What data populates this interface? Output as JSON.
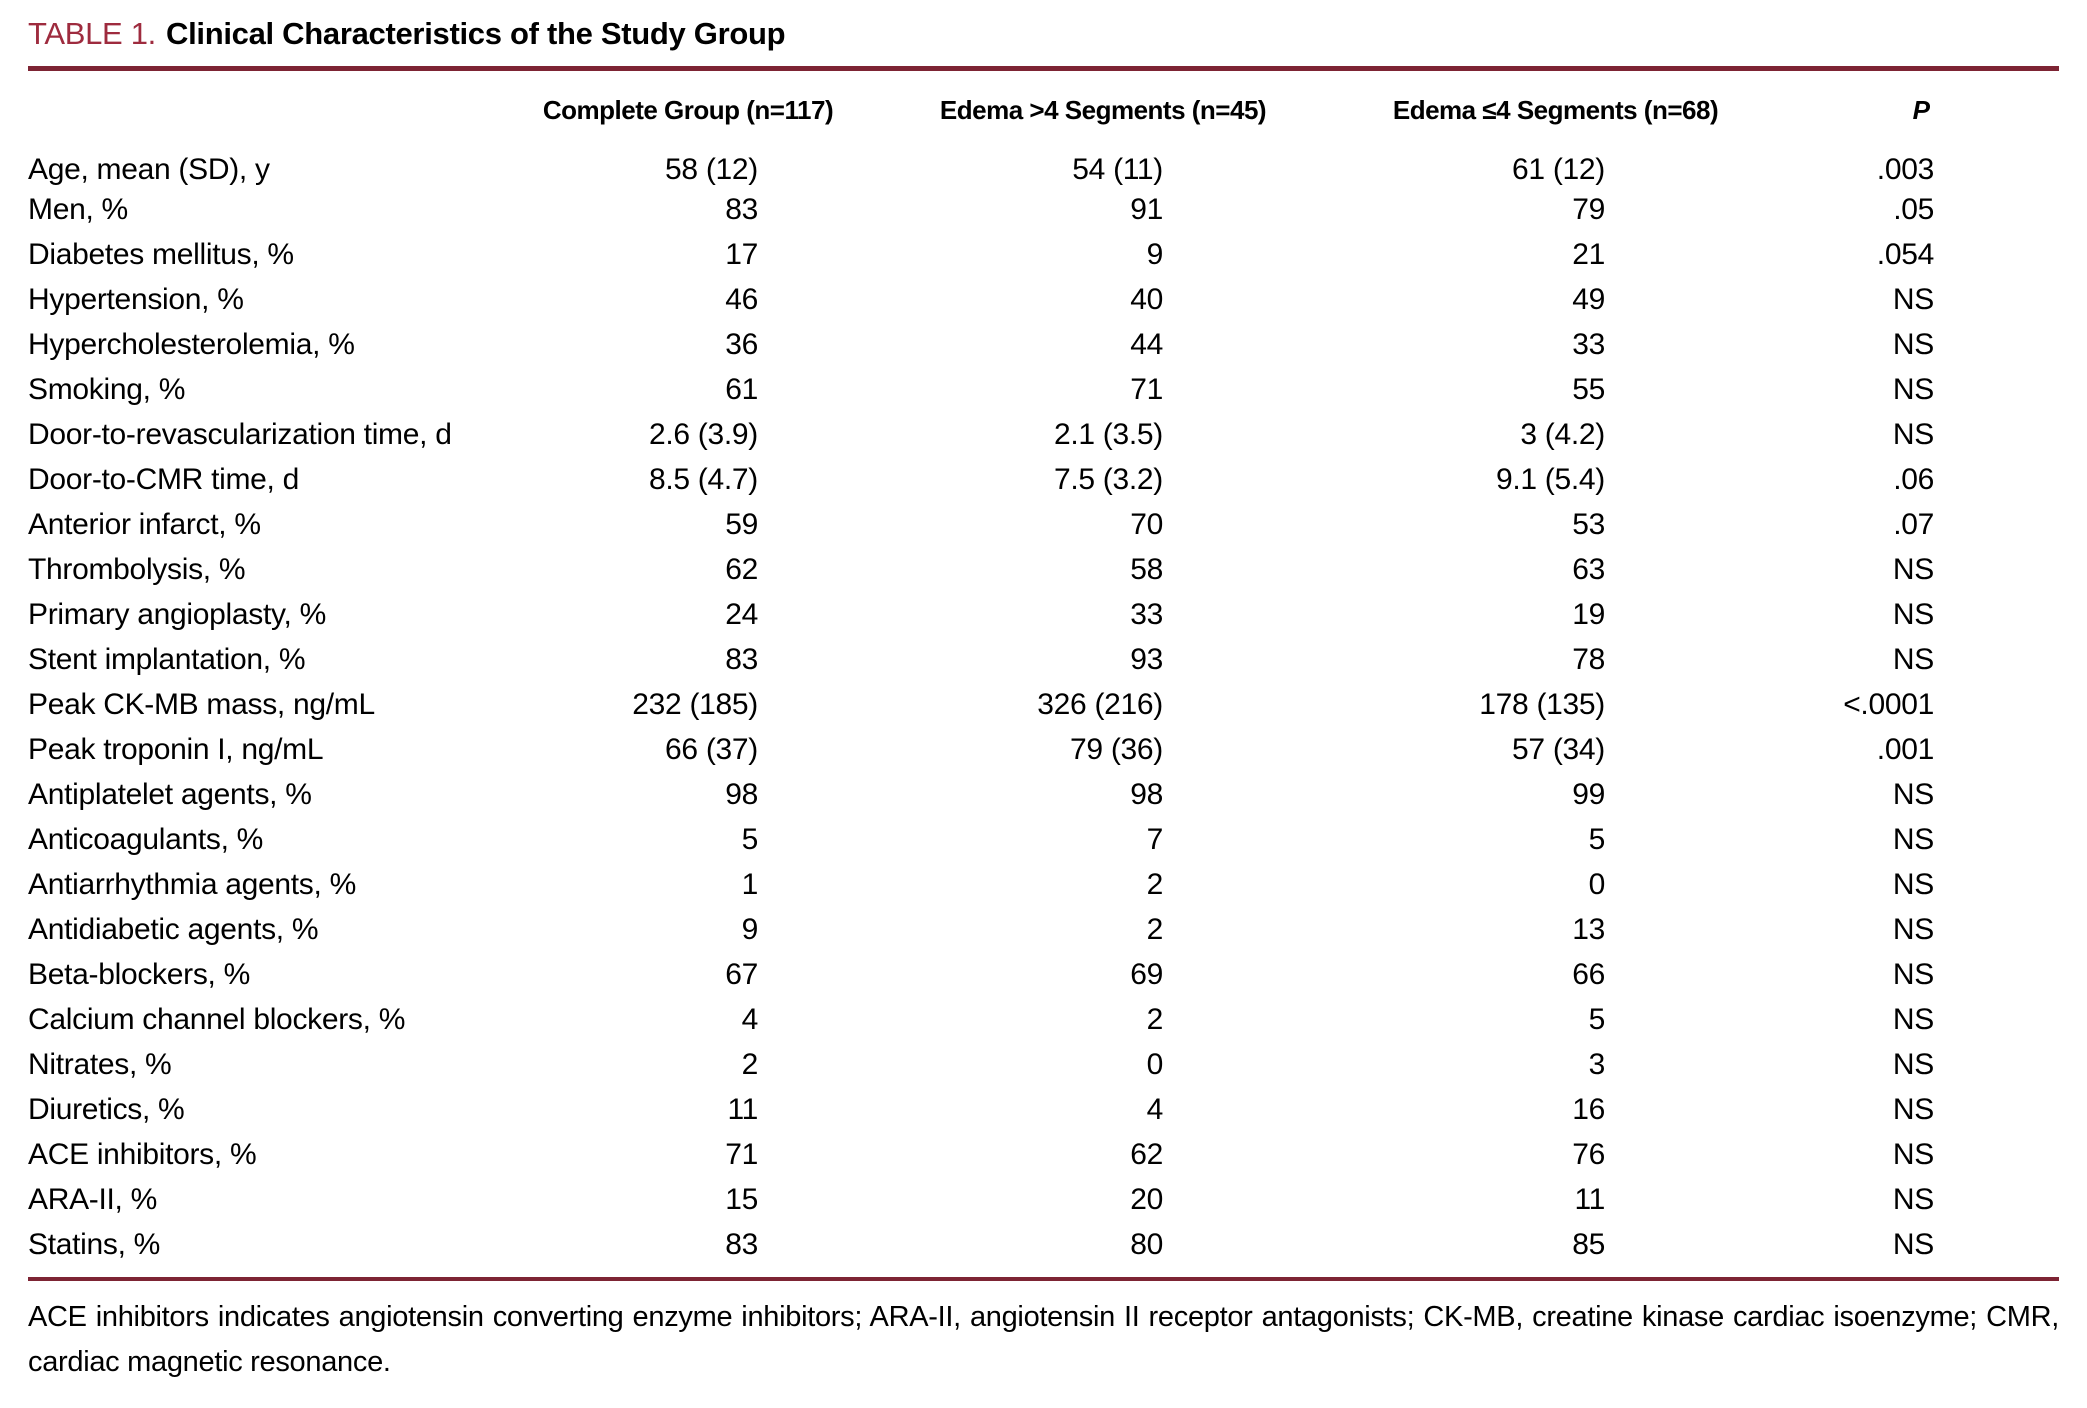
{
  "colors": {
    "accent": "#9e2b3e",
    "rule": "#7d2434"
  },
  "table": {
    "label": "TABLE 1.",
    "title": "Clinical Characteristics of the Study Group",
    "columns": [
      "",
      "Complete Group (n=117)",
      "Edema >4 Segments (n=45)",
      "Edema ≤4 Segments (n=68)",
      "P"
    ],
    "rows": [
      {
        "label": "Age, mean (SD), y",
        "complete": "58 (12)",
        "edema_gt4": "54 (11)",
        "edema_le4": "61 (12)",
        "p": ".003"
      },
      {
        "label": "Men, %",
        "complete": "83",
        "edema_gt4": "91",
        "edema_le4": "79",
        "p": ".05"
      },
      {
        "label": "Diabetes mellitus, %",
        "complete": "17",
        "edema_gt4": "9",
        "edema_le4": "21",
        "p": ".054"
      },
      {
        "label": "Hypertension, %",
        "complete": "46",
        "edema_gt4": "40",
        "edema_le4": "49",
        "p": "NS"
      },
      {
        "label": "Hypercholesterolemia, %",
        "complete": "36",
        "edema_gt4": "44",
        "edema_le4": "33",
        "p": "NS"
      },
      {
        "label": "Smoking, %",
        "complete": "61",
        "edema_gt4": "71",
        "edema_le4": "55",
        "p": "NS"
      },
      {
        "label": "Door-to-revascularization time, d",
        "complete": "2.6 (3.9)",
        "edema_gt4": "2.1 (3.5)",
        "edema_le4": "3 (4.2)",
        "p": "NS"
      },
      {
        "label": "Door-to-CMR time, d",
        "complete": "8.5 (4.7)",
        "edema_gt4": "7.5 (3.2)",
        "edema_le4": "9.1 (5.4)",
        "p": ".06"
      },
      {
        "label": "Anterior infarct, %",
        "complete": "59",
        "edema_gt4": "70",
        "edema_le4": "53",
        "p": ".07"
      },
      {
        "label": "Thrombolysis, %",
        "complete": "62",
        "edema_gt4": "58",
        "edema_le4": "63",
        "p": "NS"
      },
      {
        "label": "Primary angioplasty, %",
        "complete": "24",
        "edema_gt4": "33",
        "edema_le4": "19",
        "p": "NS"
      },
      {
        "label": "Stent implantation, %",
        "complete": "83",
        "edema_gt4": "93",
        "edema_le4": "78",
        "p": "NS"
      },
      {
        "label": "Peak CK-MB mass, ng/mL",
        "complete": "232 (185)",
        "edema_gt4": "326 (216)",
        "edema_le4": "178 (135)",
        "p": "<.0001"
      },
      {
        "label": "Peak troponin I, ng/mL",
        "complete": "66 (37)",
        "edema_gt4": "79 (36)",
        "edema_le4": "57 (34)",
        "p": ".001"
      },
      {
        "label": "Antiplatelet agents, %",
        "complete": "98",
        "edema_gt4": "98",
        "edema_le4": "99",
        "p": "NS"
      },
      {
        "label": "Anticoagulants, %",
        "complete": "5",
        "edema_gt4": "7",
        "edema_le4": "5",
        "p": "NS"
      },
      {
        "label": "Antiarrhythmia agents, %",
        "complete": "1",
        "edema_gt4": "2",
        "edema_le4": "0",
        "p": "NS"
      },
      {
        "label": "Antidiabetic agents, %",
        "complete": "9",
        "edema_gt4": "2",
        "edema_le4": "13",
        "p": "NS"
      },
      {
        "label": "Beta-blockers, %",
        "complete": "67",
        "edema_gt4": "69",
        "edema_le4": "66",
        "p": "NS"
      },
      {
        "label": "Calcium channel blockers, %",
        "complete": "4",
        "edema_gt4": "2",
        "edema_le4": "5",
        "p": "NS"
      },
      {
        "label": "Nitrates, %",
        "complete": "2",
        "edema_gt4": "0",
        "edema_le4": "3",
        "p": "NS"
      },
      {
        "label": "Diuretics, %",
        "complete": "11",
        "edema_gt4": "4",
        "edema_le4": "16",
        "p": "NS"
      },
      {
        "label": "ACE inhibitors, %",
        "complete": "71",
        "edema_gt4": "62",
        "edema_le4": "76",
        "p": "NS"
      },
      {
        "label": "ARA-II, %",
        "complete": "15",
        "edema_gt4": "20",
        "edema_le4": "11",
        "p": "NS"
      },
      {
        "label": "Statins, %",
        "complete": "83",
        "edema_gt4": "80",
        "edema_le4": "85",
        "p": "NS"
      }
    ],
    "footnote": "ACE inhibitors indicates angiotensin converting enzyme inhibitors; ARA-II, angiotensin II receptor antagonists; CK-MB, creatine kinase cardiac isoenzyme; CMR, cardiac magnetic resonance."
  }
}
